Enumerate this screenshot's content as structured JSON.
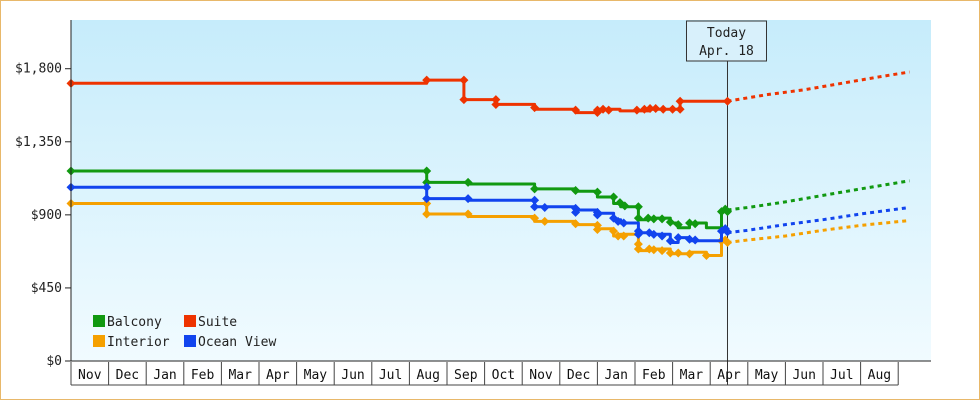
{
  "chart_data": {
    "type": "line",
    "x_axis": {
      "ticks": [
        "Nov",
        "Dec",
        "Jan",
        "Feb",
        "Mar",
        "Apr",
        "May",
        "Jun",
        "Jul",
        "Aug",
        "Sep",
        "Oct",
        "Nov",
        "Dec",
        "Jan",
        "Feb",
        "Mar",
        "Apr",
        "May",
        "Jun",
        "Jul",
        "Aug"
      ]
    },
    "y_axis": {
      "min": 0,
      "max": 2100,
      "ticks": [
        0,
        450,
        900,
        1350,
        1800
      ],
      "tick_labels": [
        "$0",
        "$450",
        "$900",
        "$1,350",
        "$1,800"
      ]
    },
    "grid": false,
    "legend": {
      "placement": "bottom-left"
    },
    "today": {
      "line1": "Today",
      "line2": "Apr. 18",
      "month_index": 17.46
    },
    "series": [
      {
        "name": "Balcony",
        "color": "#119911",
        "points": [
          [
            0,
            1170
          ],
          [
            9.46,
            1170
          ],
          [
            9.46,
            1100
          ],
          [
            10.56,
            1100
          ],
          [
            10.56,
            1090
          ],
          [
            12.33,
            1090
          ],
          [
            12.33,
            1060
          ],
          [
            13.42,
            1060
          ],
          [
            13.42,
            1045
          ],
          [
            14.0,
            1045
          ],
          [
            14.0,
            1010
          ],
          [
            14.43,
            1010
          ],
          [
            14.43,
            970
          ],
          [
            14.62,
            970
          ],
          [
            14.62,
            950
          ],
          [
            15.09,
            950
          ],
          [
            15.09,
            870
          ],
          [
            15.38,
            870
          ],
          [
            15.38,
            880
          ],
          [
            15.94,
            880
          ],
          [
            15.94,
            850
          ],
          [
            16.15,
            850
          ],
          [
            16.15,
            820
          ],
          [
            16.45,
            820
          ],
          [
            16.45,
            850
          ],
          [
            16.9,
            850
          ],
          [
            16.9,
            820
          ],
          [
            17.3,
            820
          ],
          [
            17.3,
            920
          ],
          [
            17.46,
            920
          ],
          [
            17.46,
            930
          ]
        ],
        "dotted": [
          [
            17.46,
            930
          ],
          [
            18,
            945
          ],
          [
            19,
            980
          ],
          [
            20,
            1020
          ],
          [
            21,
            1060
          ],
          [
            22.3,
            1110
          ]
        ],
        "markers": [
          [
            0,
            1170
          ],
          [
            9.46,
            1170
          ],
          [
            9.46,
            1100
          ],
          [
            10.56,
            1100
          ],
          [
            12.33,
            1060
          ],
          [
            13.42,
            1050
          ],
          [
            14.0,
            1040
          ],
          [
            14.43,
            1010
          ],
          [
            14.6,
            975
          ],
          [
            14.73,
            955
          ],
          [
            15.09,
            950
          ],
          [
            15.09,
            880
          ],
          [
            15.35,
            880
          ],
          [
            15.5,
            875
          ],
          [
            15.72,
            875
          ],
          [
            15.94,
            855
          ],
          [
            16.15,
            840
          ],
          [
            16.45,
            850
          ],
          [
            16.6,
            845
          ],
          [
            17.3,
            920
          ],
          [
            17.4,
            935
          ],
          [
            17.46,
            920
          ]
        ]
      },
      {
        "name": "Suite",
        "color": "#ee3300",
        "points": [
          [
            0,
            1710
          ],
          [
            9.46,
            1710
          ],
          [
            9.46,
            1730
          ],
          [
            10.45,
            1730
          ],
          [
            10.45,
            1610
          ],
          [
            11.3,
            1610
          ],
          [
            11.3,
            1580
          ],
          [
            12.33,
            1580
          ],
          [
            12.33,
            1550
          ],
          [
            13.42,
            1550
          ],
          [
            13.42,
            1530
          ],
          [
            14.0,
            1530
          ],
          [
            14.0,
            1550
          ],
          [
            14.6,
            1550
          ],
          [
            14.6,
            1540
          ],
          [
            15.4,
            1540
          ],
          [
            15.4,
            1550
          ],
          [
            16.2,
            1550
          ],
          [
            16.2,
            1600
          ],
          [
            17.46,
            1600
          ]
        ],
        "dotted": [
          [
            17.46,
            1600
          ],
          [
            18.5,
            1640
          ],
          [
            19.5,
            1670
          ],
          [
            20.5,
            1710
          ],
          [
            21.5,
            1750
          ],
          [
            22.3,
            1780
          ]
        ],
        "markers": [
          [
            0,
            1710
          ],
          [
            9.46,
            1730
          ],
          [
            10.45,
            1730
          ],
          [
            10.45,
            1610
          ],
          [
            11.3,
            1610
          ],
          [
            11.3,
            1580
          ],
          [
            12.33,
            1560
          ],
          [
            13.42,
            1545
          ],
          [
            14.0,
            1545
          ],
          [
            14.0,
            1530
          ],
          [
            14.15,
            1550
          ],
          [
            14.3,
            1545
          ],
          [
            15.05,
            1545
          ],
          [
            15.25,
            1550
          ],
          [
            15.4,
            1555
          ],
          [
            15.55,
            1555
          ],
          [
            15.75,
            1550
          ],
          [
            16.0,
            1550
          ],
          [
            16.2,
            1550
          ],
          [
            16.2,
            1600
          ],
          [
            17.46,
            1600
          ]
        ]
      },
      {
        "name": "Interior",
        "color": "#f5a000",
        "points": [
          [
            0,
            970
          ],
          [
            9.46,
            970
          ],
          [
            9.46,
            905
          ],
          [
            10.56,
            905
          ],
          [
            10.56,
            890
          ],
          [
            12.33,
            890
          ],
          [
            12.33,
            860
          ],
          [
            13.42,
            860
          ],
          [
            13.42,
            840
          ],
          [
            14.0,
            840
          ],
          [
            14.0,
            815
          ],
          [
            14.43,
            815
          ],
          [
            14.43,
            770
          ],
          [
            14.62,
            770
          ],
          [
            14.62,
            780
          ],
          [
            15.09,
            780
          ],
          [
            15.09,
            680
          ],
          [
            15.38,
            680
          ],
          [
            15.38,
            690
          ],
          [
            15.94,
            690
          ],
          [
            15.94,
            660
          ],
          [
            16.45,
            660
          ],
          [
            16.45,
            670
          ],
          [
            16.9,
            670
          ],
          [
            16.9,
            650
          ],
          [
            17.3,
            650
          ],
          [
            17.3,
            740
          ],
          [
            17.46,
            740
          ],
          [
            17.46,
            730
          ]
        ],
        "dotted": [
          [
            17.46,
            730
          ],
          [
            18,
            745
          ],
          [
            19,
            770
          ],
          [
            20,
            805
          ],
          [
            21,
            835
          ],
          [
            22.3,
            865
          ]
        ],
        "markers": [
          [
            0,
            970
          ],
          [
            9.46,
            970
          ],
          [
            9.46,
            905
          ],
          [
            10.56,
            905
          ],
          [
            12.33,
            880
          ],
          [
            12.6,
            860
          ],
          [
            13.42,
            845
          ],
          [
            14.0,
            835
          ],
          [
            14.0,
            810
          ],
          [
            14.43,
            800
          ],
          [
            14.55,
            770
          ],
          [
            14.7,
            770
          ],
          [
            15.09,
            720
          ],
          [
            15.09,
            690
          ],
          [
            15.38,
            690
          ],
          [
            15.5,
            685
          ],
          [
            15.72,
            680
          ],
          [
            15.94,
            665
          ],
          [
            16.15,
            665
          ],
          [
            16.45,
            660
          ],
          [
            16.9,
            650
          ],
          [
            17.3,
            740
          ],
          [
            17.4,
            745
          ],
          [
            17.46,
            730
          ]
        ]
      },
      {
        "name": "Ocean View",
        "color": "#1144ee",
        "points": [
          [
            0,
            1070
          ],
          [
            9.46,
            1070
          ],
          [
            9.46,
            1000
          ],
          [
            10.56,
            1000
          ],
          [
            10.56,
            990
          ],
          [
            12.33,
            990
          ],
          [
            12.33,
            950
          ],
          [
            13.42,
            950
          ],
          [
            13.42,
            930
          ],
          [
            14.0,
            930
          ],
          [
            14.0,
            910
          ],
          [
            14.43,
            910
          ],
          [
            14.43,
            870
          ],
          [
            14.62,
            870
          ],
          [
            14.62,
            850
          ],
          [
            15.09,
            850
          ],
          [
            15.09,
            790
          ],
          [
            15.38,
            790
          ],
          [
            15.38,
            780
          ],
          [
            15.94,
            780
          ],
          [
            15.94,
            730
          ],
          [
            16.15,
            730
          ],
          [
            16.15,
            760
          ],
          [
            16.45,
            760
          ],
          [
            16.45,
            740
          ],
          [
            17.3,
            740
          ],
          [
            17.3,
            800
          ],
          [
            17.46,
            800
          ],
          [
            17.46,
            790
          ]
        ],
        "dotted": [
          [
            17.46,
            790
          ],
          [
            18,
            805
          ],
          [
            19,
            840
          ],
          [
            20,
            870
          ],
          [
            21,
            905
          ],
          [
            22.3,
            945
          ]
        ],
        "markers": [
          [
            0,
            1070
          ],
          [
            9.46,
            1070
          ],
          [
            9.46,
            1000
          ],
          [
            10.56,
            1000
          ],
          [
            12.33,
            990
          ],
          [
            12.33,
            950
          ],
          [
            12.6,
            945
          ],
          [
            13.42,
            940
          ],
          [
            13.42,
            915
          ],
          [
            14.0,
            915
          ],
          [
            14.0,
            900
          ],
          [
            14.43,
            880
          ],
          [
            14.55,
            860
          ],
          [
            14.7,
            850
          ],
          [
            15.09,
            800
          ],
          [
            15.09,
            780
          ],
          [
            15.38,
            790
          ],
          [
            15.5,
            780
          ],
          [
            15.72,
            770
          ],
          [
            15.94,
            740
          ],
          [
            16.15,
            760
          ],
          [
            16.45,
            750
          ],
          [
            16.6,
            745
          ],
          [
            17.3,
            800
          ],
          [
            17.4,
            815
          ],
          [
            17.46,
            795
          ]
        ]
      }
    ]
  }
}
